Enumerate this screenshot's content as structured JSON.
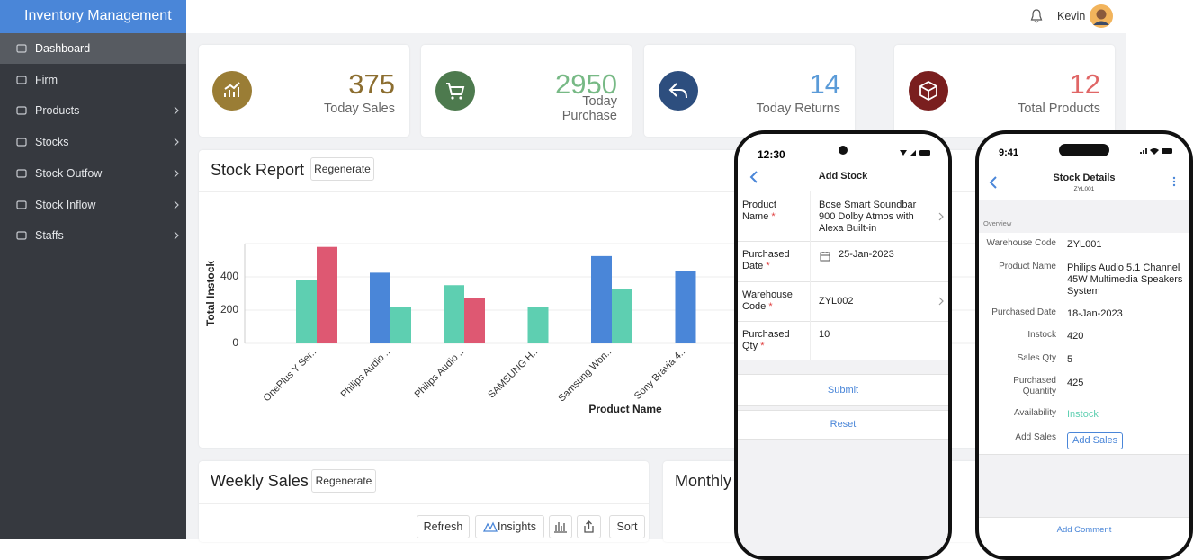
{
  "sidebar": {
    "title": "Inventory Management",
    "items": [
      "Dashboard",
      "Firm",
      "Products",
      "Stocks",
      "Stock Outfow",
      "Stock Inflow",
      "Staffs"
    ]
  },
  "topbar": {
    "user": "Kevin"
  },
  "stats": [
    {
      "value": 375,
      "label": "Today Sales"
    },
    {
      "value": 2950,
      "label": "Today Purchase"
    },
    {
      "value": 14,
      "label": "Today Returns"
    },
    {
      "value": 12,
      "label": "Total Products"
    }
  ],
  "stock_report": {
    "title": "Stock Report",
    "button": "Regenerate"
  },
  "chart_data": {
    "type": "bar",
    "ylabel": "Total Instock",
    "xlabel": "Product Name",
    "categories": [
      "OnePlus Y Ser..",
      "Philips Audio ..",
      "Philips Audio ..",
      "SAMSUNG H..",
      "Samsung Won..",
      "Sony Bravia 4.."
    ],
    "series": [
      {
        "color": "#4a86d8",
        "values": [
          null,
          425,
          null,
          null,
          525,
          435
        ]
      },
      {
        "color": "#5ecfb1",
        "values": [
          380,
          220,
          350,
          220,
          325,
          null
        ]
      },
      {
        "color": "#de5872",
        "values": [
          580,
          null,
          275,
          null,
          null,
          null
        ]
      }
    ],
    "ylim": [
      0,
      600
    ],
    "yticks": [
      0,
      200,
      400
    ],
    "grid": true
  },
  "weekly_sales": {
    "title": "Weekly Sales",
    "regenerate": "Regenerate",
    "refresh": "Refresh",
    "insights": "Insights",
    "sort": "Sort"
  },
  "monthly": {
    "title": "Monthly"
  },
  "add_stock_phone": {
    "time": "12:30",
    "title": "Add Stock",
    "required_mark": "*",
    "fields": [
      {
        "label": "Product Name",
        "value": "Bose Smart Soundbar 900 Dolby Atmos with Alexa Built-in"
      },
      {
        "label": "Purchased Date",
        "value": "25-Jan-2023"
      },
      {
        "label": "Warehouse Code",
        "value": "ZYL002"
      },
      {
        "label": "Purchased Qty",
        "value": "10"
      }
    ],
    "submit": "Submit",
    "reset": "Reset"
  },
  "stock_details_phone": {
    "time": "9:41",
    "title": "Stock Details",
    "subtitle": "ZYL001",
    "section": "Overview",
    "fields": [
      {
        "label": "Warehouse Code",
        "value": "ZYL001"
      },
      {
        "label": "Product Name",
        "value": "Philips Audio 5.1 Channel 45W Multimedia Speakers System"
      },
      {
        "label": "Purchased Date",
        "value": "18-Jan-2023"
      },
      {
        "label": "Instock",
        "value": "420"
      },
      {
        "label": "Sales Qty",
        "value": "5"
      },
      {
        "label": "Purchased Quantity",
        "value": "425"
      },
      {
        "label": "Availability",
        "value": "Instock"
      },
      {
        "label": "Add Sales",
        "value": "Add Sales"
      }
    ],
    "add_comment": "Add Comment"
  }
}
